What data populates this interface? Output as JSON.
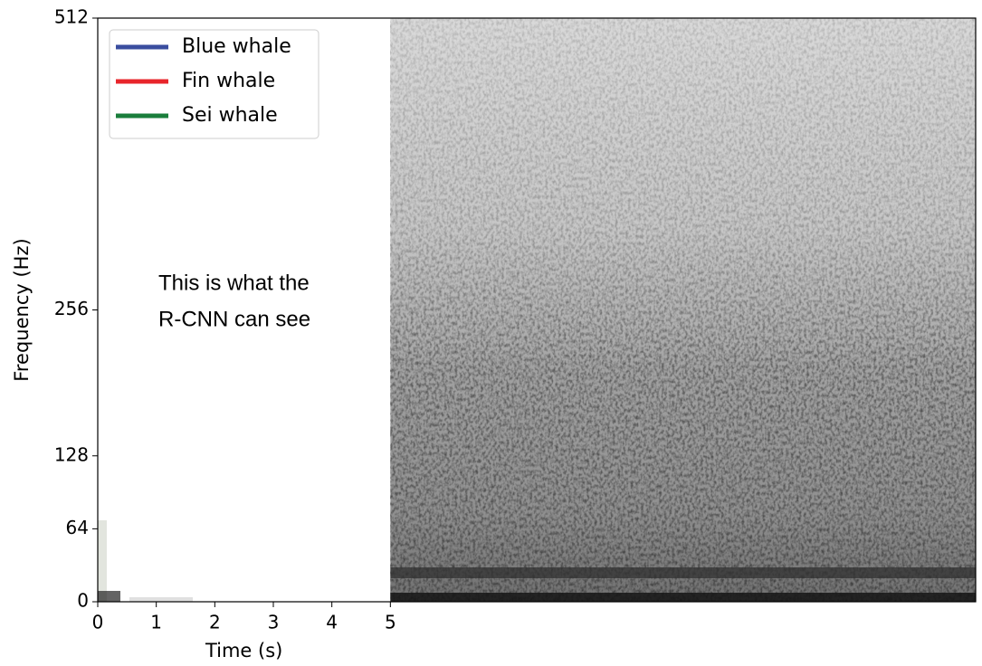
{
  "chart_data": {
    "type": "spectrogram",
    "x_label": "Time (s)",
    "y_label": "Frequency (Hz)",
    "xlim": [
      0,
      15
    ],
    "xticks": [
      0,
      1,
      2,
      3,
      4,
      5
    ],
    "ylim": [
      0,
      512
    ],
    "yticks": [
      0,
      64,
      128,
      256,
      512
    ],
    "log_scale": false,
    "grid": false,
    "legend": "upper left",
    "visible_from": 5,
    "annotation": [
      "This is what the",
      "R-CNN can see"
    ],
    "series": [
      {
        "name": "Blue whale",
        "color": "#3a4d9f"
      },
      {
        "name": "Fin whale",
        "color": "#e8252b"
      },
      {
        "name": "Sei whale",
        "color": "#1a7e3b"
      }
    ]
  }
}
